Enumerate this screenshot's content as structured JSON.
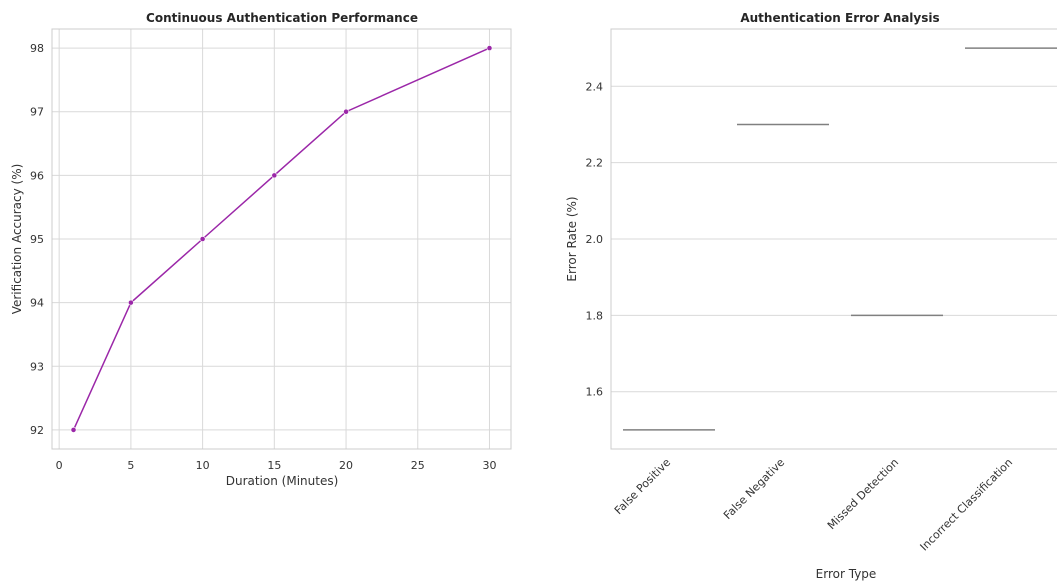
{
  "chart_data": [
    {
      "type": "line",
      "title": "Continuous Authentication Performance",
      "xlabel": "Duration (Minutes)",
      "ylabel": "Verification Accuracy (%)",
      "x": [
        1,
        5,
        10,
        15,
        20,
        30
      ],
      "y": [
        92,
        94,
        95,
        96,
        97,
        98
      ],
      "xlim": [
        -0.5,
        31.5
      ],
      "ylim": [
        91.7,
        98.3
      ],
      "xticks": [
        0,
        5,
        10,
        15,
        20,
        25,
        30
      ],
      "yticks": [
        92,
        93,
        94,
        95,
        96,
        97,
        98
      ],
      "grid": true,
      "color": "#9b27a8",
      "marker": "circle"
    },
    {
      "type": "box",
      "title": "Authentication Error Analysis",
      "xlabel": "Error Type",
      "ylabel": "Error Rate (%)",
      "categories": [
        "False Positive",
        "False Negative",
        "Missed Detection",
        "Incorrect Classification"
      ],
      "values": [
        1.5,
        2.3,
        1.8,
        2.5
      ],
      "ylim": [
        1.45,
        2.55
      ],
      "yticks": [
        1.6,
        1.8,
        2.0,
        2.2,
        2.4
      ],
      "ytick_labels": [
        "1.6",
        "1.8",
        "2.0",
        "2.2",
        "2.4"
      ],
      "grid": true,
      "color": "#808080"
    }
  ]
}
